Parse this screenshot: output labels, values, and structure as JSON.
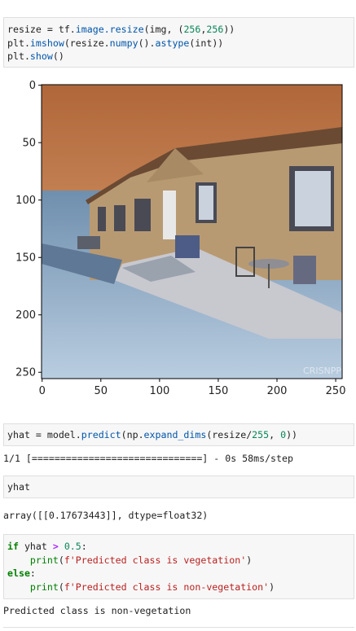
{
  "cell1": {
    "line1": {
      "var": "resize",
      "eq": " = ",
      "mod": "tf.",
      "fn": "image.resize",
      "args_open": "(img, (",
      "n1": "256",
      "comma": ",",
      "n2": "256",
      "close": "))"
    },
    "line2": {
      "a": "plt.",
      "fn": "imshow",
      "b": "(resize.",
      "fn2": "numpy",
      "c": "().",
      "fn3": "astype",
      "d": "(int))"
    },
    "line3": {
      "a": "plt.",
      "fn": "show",
      "b": "()"
    }
  },
  "figure": {
    "y_ticks": [
      "0",
      "50",
      "100",
      "150",
      "200",
      "250"
    ],
    "x_ticks": [
      "0",
      "50",
      "100",
      "150",
      "200",
      "250"
    ],
    "watermark": "CRISNPP"
  },
  "cell2": {
    "a": "yhat = model.",
    "fn": "predict",
    "b": "(np.",
    "fn2": "expand_dims",
    "c": "(resize/",
    "n1": "255",
    "d": ", ",
    "n2": "0",
    "e": "))"
  },
  "out2": "1/1 [==============================] - 0s 58ms/step",
  "cell3": "yhat",
  "out3": "array([[0.17673443]], dtype=float32)",
  "cell4": {
    "l1_kw": "if",
    "l1_a": " yhat ",
    "l1_op": ">",
    "l1_b": " ",
    "l1_num": "0.5",
    "l1_c": ":",
    "l2_a": "    ",
    "l2_fn": "print",
    "l2_b": "(",
    "l2_str": "f'Predicted class is vegetation'",
    "l2_c": ")",
    "l3_kw": "else",
    "l3_c": ":",
    "l4_a": "    ",
    "l4_fn": "print",
    "l4_b": "(",
    "l4_str": "f'Predicted class is non-vegetation'",
    "l4_c": ")"
  },
  "out4": "Predicted class is non-vegetation"
}
